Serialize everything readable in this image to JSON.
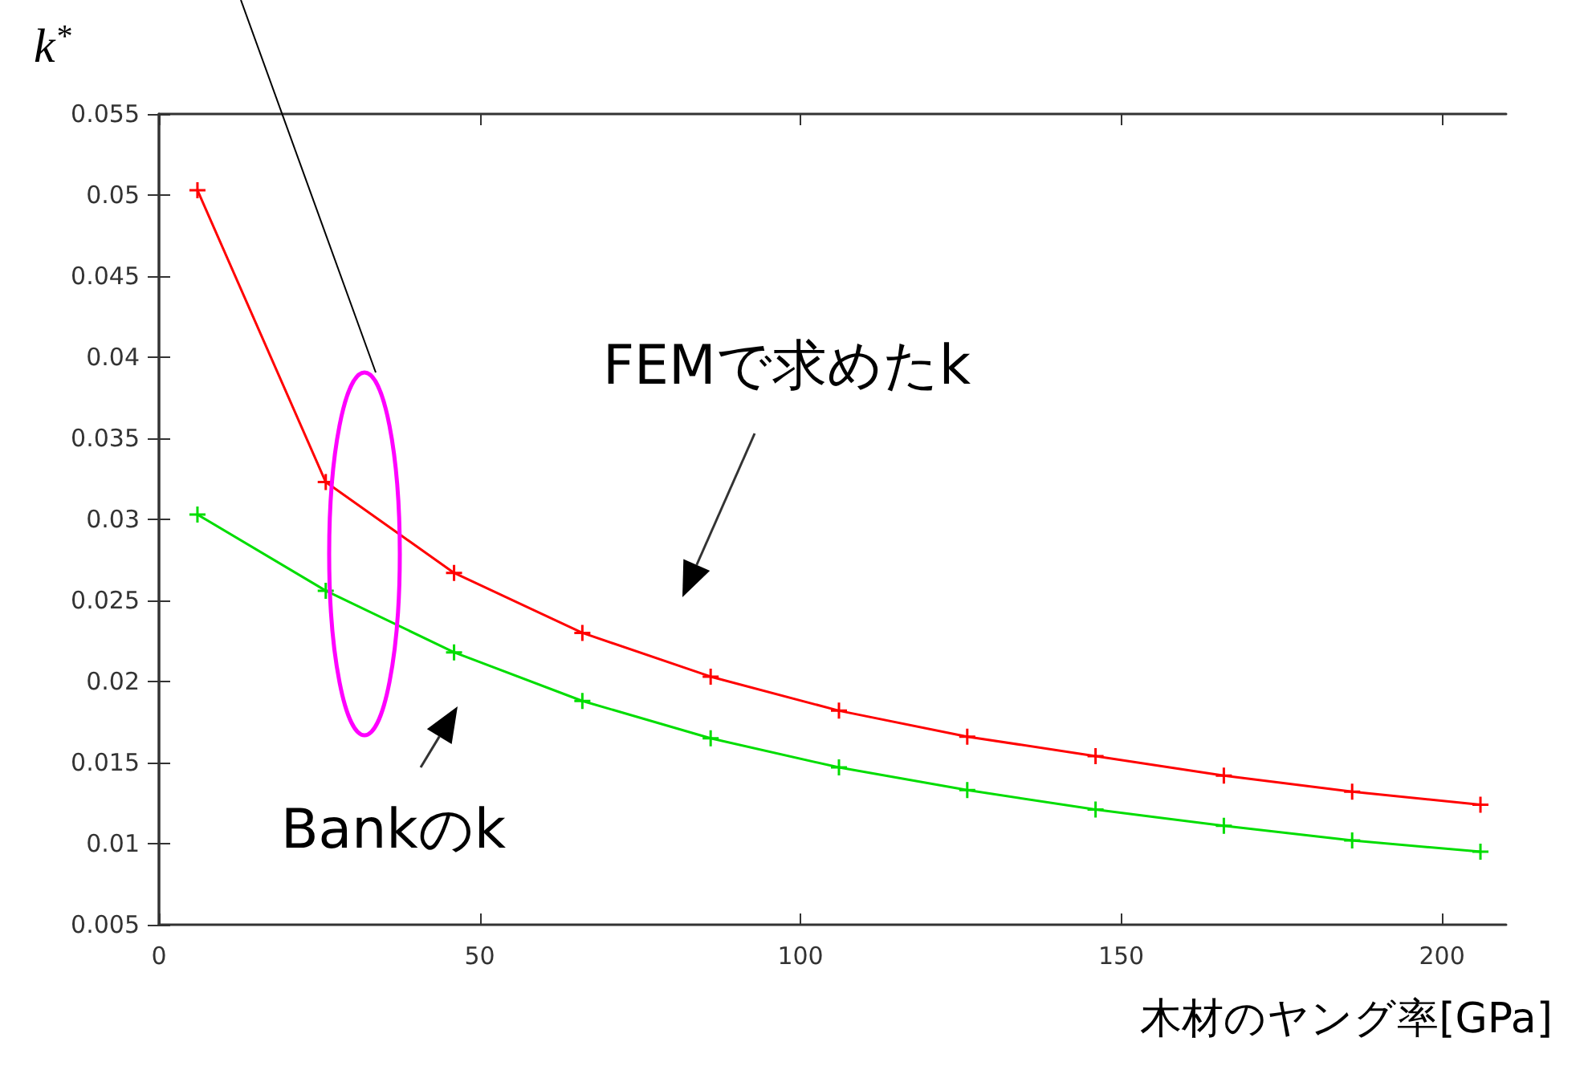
{
  "chart_data": {
    "type": "line",
    "xlabel": "木材のヤング率[GPa]",
    "ylabel": "k$^{*}$",
    "annotations": [
      "FEMで求めたk",
      "Bankのk"
    ],
    "x": [
      6,
      26,
      46,
      66,
      86,
      106,
      126,
      146,
      166,
      186,
      206
    ],
    "series": [
      {
        "color": "#ff0000",
        "marker": "cross",
        "values": [
          0.0503,
          0.0323,
          0.0267,
          0.023,
          0.0203,
          0.0182,
          0.0166,
          0.0154,
          0.0142,
          0.0132,
          0.0124
        ]
      },
      {
        "color": "#00dd00",
        "marker": "cross",
        "values": [
          0.0303,
          0.0256,
          0.0218,
          0.0188,
          0.0165,
          0.0147,
          0.0133,
          0.0121,
          0.0111,
          0.0102,
          0.0095
        ]
      }
    ],
    "xlim": [
      0,
      210
    ],
    "xticks": [
      0,
      50,
      100,
      150,
      200
    ],
    "ylim": [
      0.005,
      0.055
    ],
    "yticks": [
      0.005,
      0.01,
      0.015,
      0.02,
      0.025,
      0.03,
      0.035,
      0.04,
      0.045,
      0.05,
      0.055
    ],
    "grid": false,
    "line_style": "solid"
  }
}
